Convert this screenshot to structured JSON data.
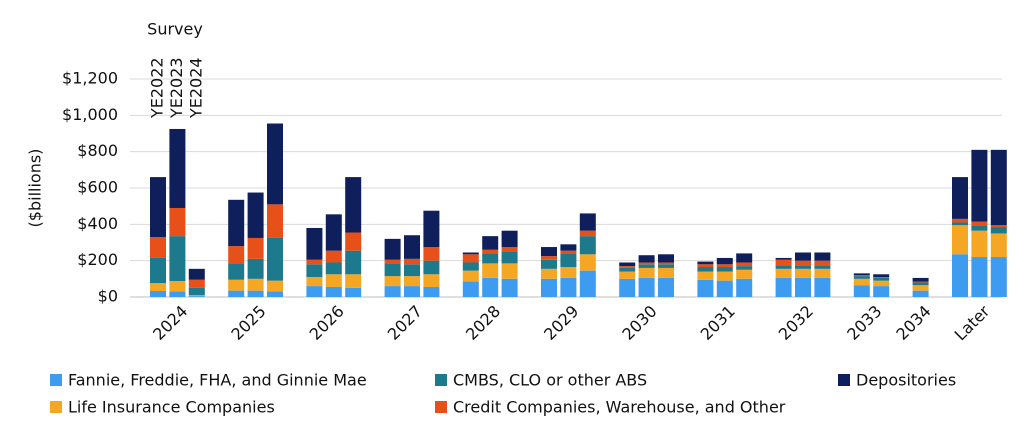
{
  "chart_data": {
    "type": "grouped-stacked-bar",
    "y_label": "($billions)",
    "survey_title": "Survey",
    "surveys": [
      "YE2022",
      "YE2023",
      "YE2024"
    ],
    "categories": [
      "2024",
      "2025",
      "2026",
      "2027",
      "2028",
      "2029",
      "2030",
      "2031",
      "2032",
      "2033",
      "2034",
      "Later"
    ],
    "ylim": [
      0,
      1200
    ],
    "yticks": [
      {
        "value": 0,
        "label": "$0"
      },
      {
        "value": 200,
        "label": "$200"
      },
      {
        "value": 400,
        "label": "$400"
      },
      {
        "value": 600,
        "label": "$600"
      },
      {
        "value": 800,
        "label": "$800"
      },
      {
        "value": 1000,
        "label": "$1,000"
      },
      {
        "value": 1200,
        "label": "$1,200"
      }
    ],
    "grid": true,
    "series": [
      {
        "name": "Fannie, Freddie, FHA, and Ginnie Mae",
        "color": "#3d9bf0",
        "values": [
          [
            33,
            30,
            5
          ],
          [
            35,
            35,
            30
          ],
          [
            60,
            55,
            50
          ],
          [
            60,
            60,
            55
          ],
          [
            85,
            105,
            100
          ],
          [
            100,
            105,
            145
          ],
          [
            100,
            105,
            105
          ],
          [
            95,
            90,
            100
          ],
          [
            105,
            105,
            105
          ],
          [
            null,
            65,
            60
          ],
          [
            null,
            null,
            35
          ],
          [
            235,
            220,
            220
          ]
        ]
      },
      {
        "name": "Life Insurance Companies",
        "color": "#f5a623",
        "values": [
          [
            44,
            58,
            5
          ],
          [
            60,
            65,
            60
          ],
          [
            50,
            70,
            75
          ],
          [
            55,
            55,
            70
          ],
          [
            60,
            80,
            85
          ],
          [
            55,
            60,
            90
          ],
          [
            40,
            55,
            55
          ],
          [
            45,
            50,
            50
          ],
          [
            50,
            50,
            50
          ],
          [
            null,
            35,
            30
          ],
          [
            null,
            null,
            30
          ],
          [
            160,
            145,
            130
          ]
        ]
      },
      {
        "name": "CMBS, CLO or other ABS",
        "color": "#1c7a8c",
        "values": [
          [
            138,
            247,
            40
          ],
          [
            90,
            110,
            235
          ],
          [
            70,
            65,
            130
          ],
          [
            70,
            65,
            75
          ],
          [
            45,
            55,
            65
          ],
          [
            50,
            75,
            100
          ],
          [
            20,
            20,
            20
          ],
          [
            25,
            25,
            20
          ],
          [
            20,
            20,
            20
          ],
          [
            null,
            15,
            15
          ],
          [
            null,
            null,
            15
          ],
          [
            15,
            30,
            35
          ]
        ]
      },
      {
        "name": "Credit Companies, Warehouse, and Other",
        "color": "#e8501a",
        "values": [
          [
            115,
            155,
            45
          ],
          [
            95,
            115,
            185
          ],
          [
            25,
            65,
            100
          ],
          [
            20,
            30,
            75
          ],
          [
            45,
            20,
            25
          ],
          [
            20,
            15,
            30
          ],
          [
            10,
            10,
            10
          ],
          [
            15,
            15,
            20
          ],
          [
            30,
            25,
            25
          ],
          [
            null,
            5,
            5
          ],
          [
            null,
            null,
            5
          ],
          [
            20,
            20,
            10
          ]
        ]
      },
      {
        "name": "Depositories",
        "color": "#0f1f5c",
        "values": [
          [
            330,
            435,
            60
          ],
          [
            255,
            250,
            445
          ],
          [
            175,
            200,
            305
          ],
          [
            115,
            130,
            200
          ],
          [
            10,
            75,
            90
          ],
          [
            50,
            35,
            95
          ],
          [
            20,
            40,
            45
          ],
          [
            15,
            35,
            50
          ],
          [
            10,
            45,
            45
          ],
          [
            null,
            10,
            15
          ],
          [
            null,
            null,
            20
          ],
          [
            230,
            395,
            415
          ]
        ]
      }
    ]
  }
}
